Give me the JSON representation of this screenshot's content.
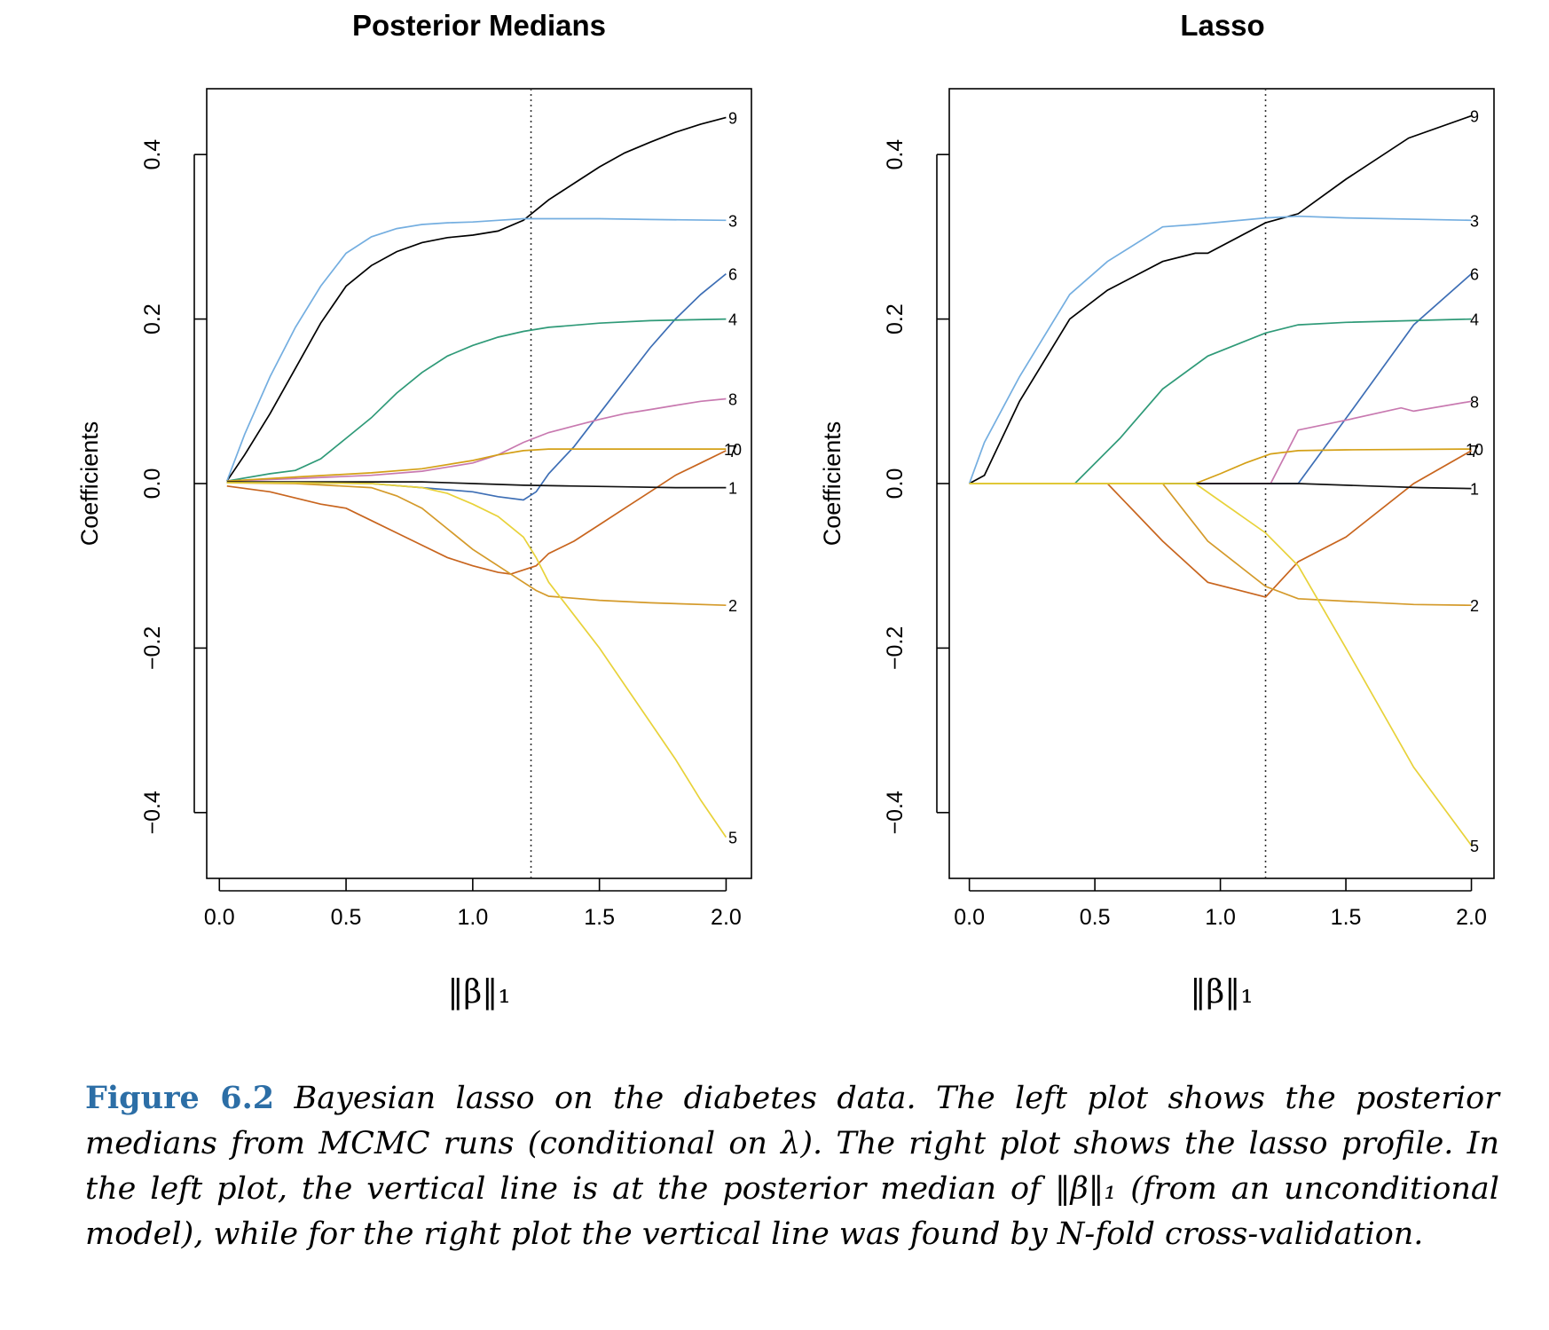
{
  "chart_data": [
    {
      "type": "line",
      "title": "Posterior Medians",
      "xlabel": "‖β‖₁",
      "ylabel": "Coefficients",
      "xlim": [
        -0.05,
        2.1
      ],
      "ylim": [
        -0.48,
        0.48
      ],
      "xticks": [
        "0.0",
        "0.5",
        "1.0",
        "1.5",
        "2.0"
      ],
      "yticks": [
        "−0.4",
        "−0.2",
        "0.0",
        "0.2",
        "0.4"
      ],
      "vline": 1.23,
      "grid": false,
      "series": [
        {
          "name": "9",
          "color": "#000000",
          "points": [
            [
              0.03,
              0.003
            ],
            [
              0.1,
              0.035
            ],
            [
              0.2,
              0.085
            ],
            [
              0.3,
              0.14
            ],
            [
              0.4,
              0.195
            ],
            [
              0.5,
              0.24
            ],
            [
              0.6,
              0.265
            ],
            [
              0.7,
              0.282
            ],
            [
              0.8,
              0.293
            ],
            [
              0.9,
              0.299
            ],
            [
              1.0,
              0.302
            ],
            [
              1.1,
              0.307
            ],
            [
              1.2,
              0.32
            ],
            [
              1.3,
              0.345
            ],
            [
              1.4,
              0.365
            ],
            [
              1.5,
              0.385
            ],
            [
              1.6,
              0.402
            ],
            [
              1.7,
              0.415
            ],
            [
              1.8,
              0.427
            ],
            [
              1.9,
              0.437
            ],
            [
              2.0,
              0.445
            ]
          ]
        },
        {
          "name": "3",
          "color": "#74aee0",
          "points": [
            [
              0.03,
              0.003
            ],
            [
              0.1,
              0.06
            ],
            [
              0.2,
              0.13
            ],
            [
              0.3,
              0.19
            ],
            [
              0.4,
              0.24
            ],
            [
              0.5,
              0.28
            ],
            [
              0.6,
              0.3
            ],
            [
              0.7,
              0.31
            ],
            [
              0.8,
              0.315
            ],
            [
              0.9,
              0.317
            ],
            [
              1.0,
              0.318
            ],
            [
              1.1,
              0.32
            ],
            [
              1.2,
              0.322
            ],
            [
              1.3,
              0.322
            ],
            [
              1.5,
              0.322
            ],
            [
              1.7,
              0.321
            ],
            [
              2.0,
              0.32
            ]
          ]
        },
        {
          "name": "6",
          "color": "#3d6eb5",
          "points": [
            [
              0.03,
              0.001
            ],
            [
              0.3,
              0.001
            ],
            [
              0.6,
              0.0
            ],
            [
              0.8,
              -0.005
            ],
            [
              1.0,
              -0.01
            ],
            [
              1.1,
              -0.016
            ],
            [
              1.2,
              -0.02
            ],
            [
              1.25,
              -0.01
            ],
            [
              1.3,
              0.012
            ],
            [
              1.4,
              0.045
            ],
            [
              1.5,
              0.085
            ],
            [
              1.6,
              0.125
            ],
            [
              1.7,
              0.165
            ],
            [
              1.8,
              0.2
            ],
            [
              1.9,
              0.23
            ],
            [
              2.0,
              0.255
            ]
          ]
        },
        {
          "name": "4",
          "color": "#2f9a78",
          "points": [
            [
              0.03,
              0.003
            ],
            [
              0.2,
              0.012
            ],
            [
              0.3,
              0.016
            ],
            [
              0.4,
              0.03
            ],
            [
              0.5,
              0.055
            ],
            [
              0.6,
              0.08
            ],
            [
              0.7,
              0.11
            ],
            [
              0.8,
              0.135
            ],
            [
              0.9,
              0.155
            ],
            [
              1.0,
              0.168
            ],
            [
              1.1,
              0.178
            ],
            [
              1.2,
              0.185
            ],
            [
              1.3,
              0.19
            ],
            [
              1.5,
              0.195
            ],
            [
              1.7,
              0.198
            ],
            [
              2.0,
              0.2
            ]
          ]
        },
        {
          "name": "8",
          "color": "#c879b0",
          "points": [
            [
              0.03,
              0.003
            ],
            [
              0.3,
              0.006
            ],
            [
              0.6,
              0.01
            ],
            [
              0.8,
              0.015
            ],
            [
              1.0,
              0.025
            ],
            [
              1.1,
              0.035
            ],
            [
              1.2,
              0.05
            ],
            [
              1.3,
              0.062
            ],
            [
              1.4,
              0.07
            ],
            [
              1.5,
              0.078
            ],
            [
              1.6,
              0.085
            ],
            [
              1.7,
              0.09
            ],
            [
              1.8,
              0.095
            ],
            [
              1.9,
              0.1
            ],
            [
              2.0,
              0.103
            ]
          ]
        },
        {
          "name": "10",
          "color": "#d4a017",
          "points": [
            [
              0.03,
              0.003
            ],
            [
              0.3,
              0.008
            ],
            [
              0.6,
              0.013
            ],
            [
              0.8,
              0.018
            ],
            [
              1.0,
              0.028
            ],
            [
              1.1,
              0.035
            ],
            [
              1.2,
              0.04
            ],
            [
              1.3,
              0.042
            ],
            [
              1.5,
              0.042
            ],
            [
              1.7,
              0.042
            ],
            [
              2.0,
              0.042
            ]
          ]
        },
        {
          "name": "7",
          "color": "#c8651e",
          "points": [
            [
              0.03,
              -0.003
            ],
            [
              0.2,
              -0.01
            ],
            [
              0.4,
              -0.025
            ],
            [
              0.5,
              -0.03
            ],
            [
              0.6,
              -0.045
            ],
            [
              0.7,
              -0.06
            ],
            [
              0.8,
              -0.075
            ],
            [
              0.9,
              -0.09
            ],
            [
              1.0,
              -0.1
            ],
            [
              1.1,
              -0.108
            ],
            [
              1.15,
              -0.11
            ],
            [
              1.25,
              -0.1
            ],
            [
              1.3,
              -0.085
            ],
            [
              1.4,
              -0.07
            ],
            [
              1.5,
              -0.05
            ],
            [
              1.6,
              -0.03
            ],
            [
              1.7,
              -0.01
            ],
            [
              1.8,
              0.01
            ],
            [
              1.9,
              0.025
            ],
            [
              2.0,
              0.04
            ]
          ]
        },
        {
          "name": "1",
          "color": "#111111",
          "points": [
            [
              0.03,
              0.002
            ],
            [
              0.3,
              0.002
            ],
            [
              0.6,
              0.002
            ],
            [
              0.8,
              0.002
            ],
            [
              1.0,
              0.0
            ],
            [
              1.2,
              -0.002
            ],
            [
              1.4,
              -0.003
            ],
            [
              1.6,
              -0.004
            ],
            [
              1.8,
              -0.005
            ],
            [
              2.0,
              -0.005
            ]
          ]
        },
        {
          "name": "2",
          "color": "#d49a2a",
          "points": [
            [
              0.03,
              0.001
            ],
            [
              0.3,
              0.0
            ],
            [
              0.6,
              -0.005
            ],
            [
              0.7,
              -0.015
            ],
            [
              0.8,
              -0.03
            ],
            [
              0.9,
              -0.055
            ],
            [
              1.0,
              -0.08
            ],
            [
              1.1,
              -0.1
            ],
            [
              1.2,
              -0.12
            ],
            [
              1.25,
              -0.13
            ],
            [
              1.3,
              -0.137
            ],
            [
              1.5,
              -0.142
            ],
            [
              1.7,
              -0.145
            ],
            [
              2.0,
              -0.148
            ]
          ]
        },
        {
          "name": "5",
          "color": "#e8d23a",
          "points": [
            [
              0.03,
              0.001
            ],
            [
              0.3,
              0.001
            ],
            [
              0.6,
              0.0
            ],
            [
              0.8,
              -0.005
            ],
            [
              0.9,
              -0.012
            ],
            [
              1.0,
              -0.025
            ],
            [
              1.1,
              -0.04
            ],
            [
              1.2,
              -0.065
            ],
            [
              1.25,
              -0.09
            ],
            [
              1.3,
              -0.12
            ],
            [
              1.4,
              -0.16
            ],
            [
              1.5,
              -0.2
            ],
            [
              1.6,
              -0.245
            ],
            [
              1.7,
              -0.29
            ],
            [
              1.8,
              -0.335
            ],
            [
              1.9,
              -0.385
            ],
            [
              2.0,
              -0.43
            ]
          ]
        }
      ]
    },
    {
      "type": "line",
      "title": "Lasso",
      "xlabel": "‖β‖₁",
      "ylabel": "Coefficients",
      "xlim": [
        -0.08,
        2.09
      ],
      "ylim": [
        -0.48,
        0.48
      ],
      "xticks": [
        "0.0",
        "0.5",
        "1.0",
        "1.5",
        "2.0"
      ],
      "yticks": [
        "−0.4",
        "−0.2",
        "0.0",
        "0.2",
        "0.4"
      ],
      "vline": 1.18,
      "grid": false,
      "series": [
        {
          "name": "9",
          "color": "#000000",
          "points": [
            [
              0.0,
              0.0
            ],
            [
              0.06,
              0.01
            ],
            [
              0.2,
              0.1
            ],
            [
              0.4,
              0.2
            ],
            [
              0.55,
              0.235
            ],
            [
              0.77,
              0.27
            ],
            [
              0.9,
              0.28
            ],
            [
              0.95,
              0.28
            ],
            [
              1.18,
              0.317
            ],
            [
              1.31,
              0.328
            ],
            [
              1.5,
              0.37
            ],
            [
              1.75,
              0.42
            ],
            [
              2.0,
              0.447
            ]
          ]
        },
        {
          "name": "3",
          "color": "#74aee0",
          "points": [
            [
              0.0,
              0.0
            ],
            [
              0.06,
              0.05
            ],
            [
              0.2,
              0.13
            ],
            [
              0.4,
              0.23
            ],
            [
              0.55,
              0.27
            ],
            [
              0.77,
              0.312
            ],
            [
              0.9,
              0.315
            ],
            [
              1.18,
              0.323
            ],
            [
              1.31,
              0.325
            ],
            [
              1.5,
              0.323
            ],
            [
              2.0,
              0.32
            ]
          ]
        },
        {
          "name": "6",
          "color": "#3d6eb5",
          "points": [
            [
              0.0,
              0.0
            ],
            [
              1.31,
              0.0
            ],
            [
              1.55,
              0.1
            ],
            [
              1.77,
              0.193
            ],
            [
              2.0,
              0.255
            ]
          ]
        },
        {
          "name": "4",
          "color": "#2f9a78",
          "points": [
            [
              0.0,
              0.0
            ],
            [
              0.42,
              0.0
            ],
            [
              0.6,
              0.055
            ],
            [
              0.77,
              0.115
            ],
            [
              0.95,
              0.155
            ],
            [
              1.18,
              0.183
            ],
            [
              1.31,
              0.193
            ],
            [
              1.5,
              0.196
            ],
            [
              2.0,
              0.2
            ]
          ]
        },
        {
          "name": "8",
          "color": "#c879b0",
          "points": [
            [
              0.0,
              0.0
            ],
            [
              1.2,
              0.0
            ],
            [
              1.31,
              0.065
            ],
            [
              1.5,
              0.077
            ],
            [
              1.72,
              0.092
            ],
            [
              1.77,
              0.088
            ],
            [
              2.0,
              0.1
            ]
          ]
        },
        {
          "name": "10",
          "color": "#d4a017",
          "points": [
            [
              0.0,
              0.0
            ],
            [
              0.9,
              0.0
            ],
            [
              1.0,
              0.012
            ],
            [
              1.1,
              0.025
            ],
            [
              1.2,
              0.036
            ],
            [
              1.31,
              0.04
            ],
            [
              1.5,
              0.041
            ],
            [
              2.0,
              0.042
            ]
          ]
        },
        {
          "name": "7",
          "color": "#c8651e",
          "points": [
            [
              0.0,
              0.0
            ],
            [
              0.55,
              0.0
            ],
            [
              0.77,
              -0.07
            ],
            [
              0.95,
              -0.12
            ],
            [
              1.18,
              -0.138
            ],
            [
              1.31,
              -0.095
            ],
            [
              1.5,
              -0.065
            ],
            [
              1.77,
              0.0
            ],
            [
              2.0,
              0.04
            ]
          ]
        },
        {
          "name": "1",
          "color": "#111111",
          "points": [
            [
              0.0,
              0.0
            ],
            [
              1.31,
              0.0
            ],
            [
              1.6,
              -0.003
            ],
            [
              1.8,
              -0.005
            ],
            [
              2.0,
              -0.006
            ]
          ]
        },
        {
          "name": "2",
          "color": "#d49a2a",
          "points": [
            [
              0.0,
              0.0
            ],
            [
              0.77,
              0.0
            ],
            [
              0.95,
              -0.07
            ],
            [
              1.18,
              -0.125
            ],
            [
              1.31,
              -0.14
            ],
            [
              1.5,
              -0.143
            ],
            [
              1.77,
              -0.147
            ],
            [
              2.0,
              -0.148
            ]
          ]
        },
        {
          "name": "5",
          "color": "#e8d23a",
          "points": [
            [
              0.0,
              0.0
            ],
            [
              0.9,
              0.0
            ],
            [
              1.18,
              -0.06
            ],
            [
              1.31,
              -0.1
            ],
            [
              1.5,
              -0.2
            ],
            [
              1.77,
              -0.345
            ],
            [
              2.0,
              -0.44
            ]
          ]
        }
      ]
    }
  ],
  "caption": {
    "label": "Figure 6.2",
    "text": " Bayesian lasso on the diabetes data. The left plot shows the posterior medians from MCMC runs (conditional on λ). The right plot shows the lasso profile. In the left plot, the vertical line is at the posterior median of ‖β‖₁ (from an unconditional model), while for the right plot the vertical line was found by N-fold cross-validation."
  }
}
